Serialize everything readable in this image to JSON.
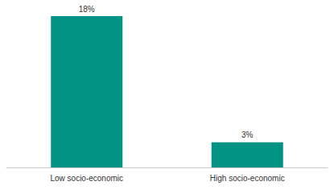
{
  "chart_data": {
    "type": "bar",
    "categories": [
      "Low socio-economic",
      "High socio-economic"
    ],
    "values": [
      18,
      3
    ],
    "value_labels": [
      "18%",
      "3%"
    ],
    "data_labels": true,
    "color": "#009384",
    "ylim": [
      0,
      18
    ],
    "yticks": [
      0,
      18
    ],
    "grid": false,
    "tick_labels": "x"
  }
}
